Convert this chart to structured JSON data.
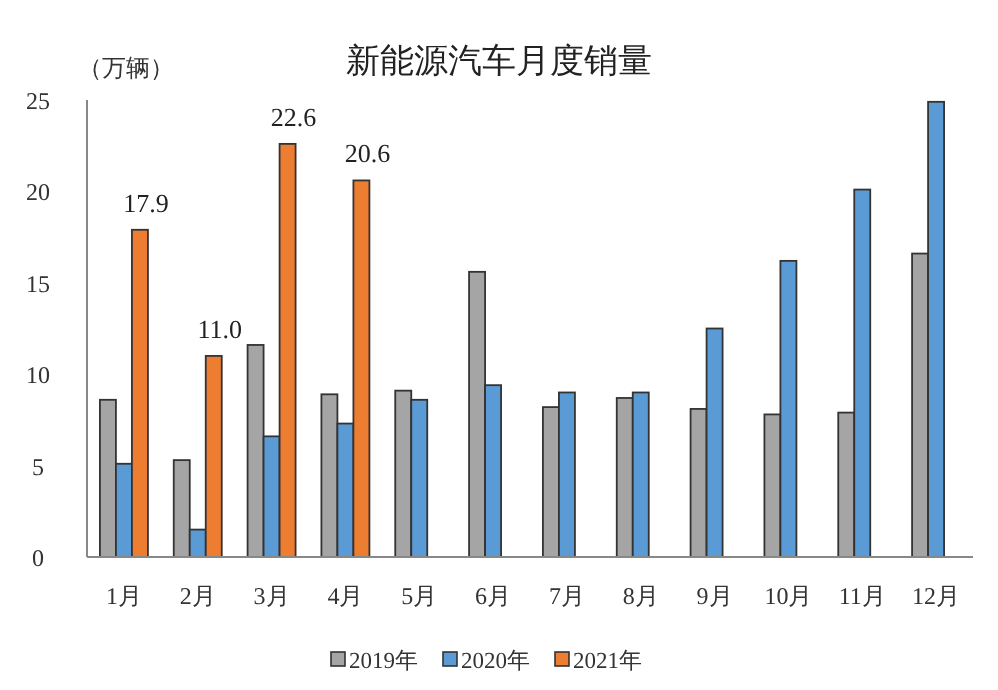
{
  "chart_data": {
    "type": "bar",
    "title": "新能源汽车月度销量",
    "ylabel": "（万辆）",
    "categories": [
      "1月",
      "2月",
      "3月",
      "4月",
      "5月",
      "6月",
      "7月",
      "8月",
      "9月",
      "10月",
      "11月",
      "12月"
    ],
    "series": [
      {
        "name": "2019年",
        "color": "#a5a5a5",
        "values": [
          8.6,
          5.3,
          11.6,
          8.9,
          9.1,
          15.6,
          8.2,
          8.7,
          8.1,
          7.8,
          7.9,
          16.6
        ]
      },
      {
        "name": "2020年",
        "color": "#5b9bd5",
        "values": [
          5.1,
          1.5,
          6.6,
          7.3,
          8.6,
          9.4,
          9.0,
          9.0,
          12.5,
          16.2,
          20.1,
          24.9
        ]
      },
      {
        "name": "2021年",
        "color": "#ed7d31",
        "values": [
          17.9,
          11.0,
          22.6,
          20.6,
          null,
          null,
          null,
          null,
          null,
          null,
          null,
          null
        ],
        "value_labels": [
          "17.9",
          "11.0",
          "22.6",
          "20.6",
          null,
          null,
          null,
          null,
          null,
          null,
          null,
          null
        ]
      }
    ],
    "ylim": [
      0,
      25
    ],
    "yticks": [
      0,
      5,
      10,
      15,
      20,
      25
    ],
    "legend": "bottom"
  }
}
